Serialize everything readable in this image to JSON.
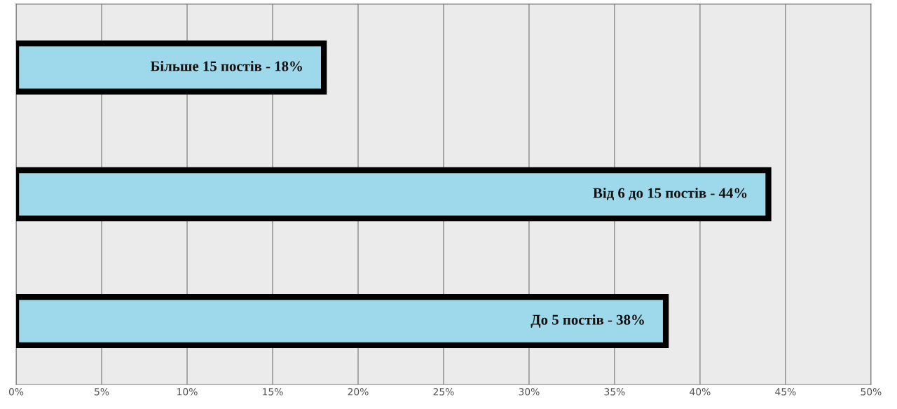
{
  "chart_data": {
    "type": "bar",
    "orientation": "horizontal",
    "categories": [
      "Більше 15 постів - 18%",
      "Від 6 до 15 постів - 44%",
      "До 5 постів - 38%"
    ],
    "values": [
      18,
      44,
      38
    ],
    "color": "#9dd9ea",
    "xlim": [
      0,
      50
    ],
    "xticks": [
      {
        "value": 0,
        "label": "0%"
      },
      {
        "value": 5,
        "label": "5%"
      },
      {
        "value": 10,
        "label": "10%"
      },
      {
        "value": 15,
        "label": "15%"
      },
      {
        "value": 20,
        "label": "20%"
      },
      {
        "value": 25,
        "label": "25%"
      },
      {
        "value": 30,
        "label": "30%"
      },
      {
        "value": 35,
        "label": "35%"
      },
      {
        "value": 40,
        "label": "40%"
      },
      {
        "value": 45,
        "label": "45%"
      },
      {
        "value": 50,
        "label": "50%"
      }
    ],
    "grid": "x",
    "legend": false
  }
}
